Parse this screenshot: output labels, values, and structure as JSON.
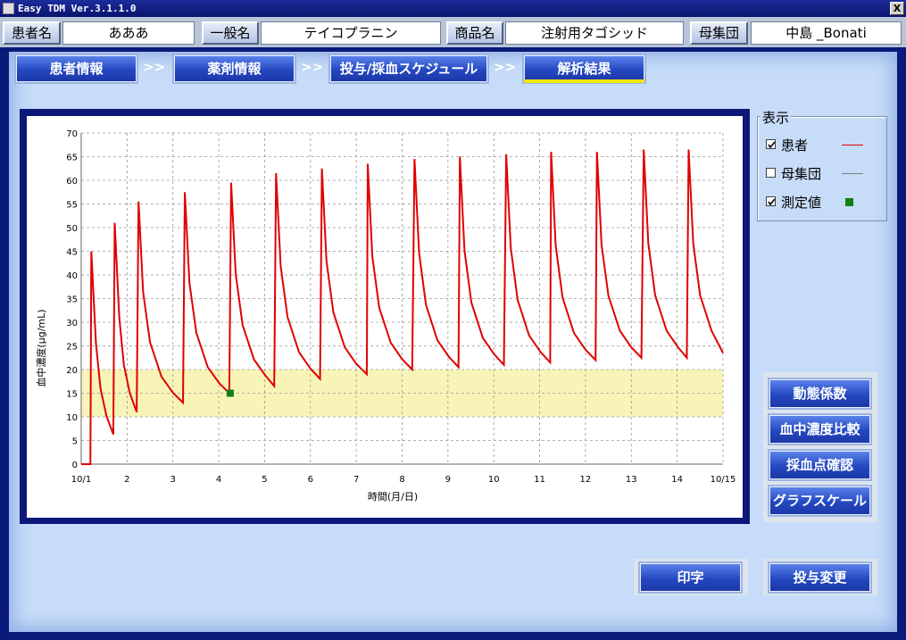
{
  "window": {
    "title": "Easy TDM Ver.3.1.1.0",
    "close_label": "X"
  },
  "header": {
    "fields": [
      {
        "label": "患者名",
        "value": "あああ"
      },
      {
        "label": "一般名",
        "value": "テイコプラニン"
      },
      {
        "label": "商品名",
        "value": "注射用タゴシッド"
      },
      {
        "label": "母集団",
        "value": "中島 _Bonati"
      }
    ]
  },
  "tabs": {
    "items": [
      "患者情報",
      "薬剤情報",
      "投与/採血スケジュール",
      "解析結果"
    ],
    "separator": ">>",
    "active": 3
  },
  "display_panel": {
    "title": "表示"
  },
  "buttons": {
    "side": [
      "動態係数",
      "血中濃度比較",
      "採血点確認",
      "グラフスケール"
    ],
    "bottom": [
      "印字",
      "投与変更"
    ]
  },
  "chart_data": {
    "type": "line",
    "x_label": "時間(月/日)",
    "y_label": "血中濃度(μg/mL)",
    "xlim": [
      1,
      15
    ],
    "xticks": [
      {
        "value": 1,
        "label": "10/1"
      },
      2,
      3,
      4,
      5,
      6,
      7,
      8,
      9,
      10,
      11,
      12,
      13,
      14,
      {
        "value": 15,
        "label": "10/15"
      }
    ],
    "ylim": [
      0,
      70
    ],
    "yticks": [
      0,
      5,
      10,
      15,
      20,
      25,
      30,
      35,
      40,
      45,
      50,
      55,
      60,
      65,
      70
    ],
    "grid": true,
    "band": [
      10,
      20
    ],
    "band_color": "#f8f4b8",
    "series": [
      {
        "name": "患者",
        "color": "#e00000",
        "visible": true,
        "x": [
          1.0,
          1.2,
          1.22,
          1.32,
          1.42,
          1.55,
          1.7,
          1.73,
          1.83,
          1.93,
          2.06,
          2.21,
          2.25,
          2.35,
          2.5,
          2.75,
          3.0,
          3.22,
          3.26,
          3.36,
          3.51,
          3.76,
          4.01,
          4.23,
          4.27,
          4.37,
          4.52,
          4.77,
          5.02,
          5.21,
          5.25,
          5.35,
          5.5,
          5.75,
          6.0,
          6.21,
          6.25,
          6.35,
          6.5,
          6.75,
          7.0,
          7.23,
          7.25,
          7.35,
          7.5,
          7.75,
          8.0,
          8.22,
          8.27,
          8.37,
          8.52,
          8.77,
          9.02,
          9.23,
          9.26,
          9.36,
          9.51,
          9.76,
          10.01,
          10.22,
          10.27,
          10.37,
          10.52,
          10.77,
          11.02,
          11.23,
          11.25,
          11.35,
          11.5,
          11.75,
          12.0,
          12.22,
          12.25,
          12.35,
          12.5,
          12.75,
          13.0,
          13.22,
          13.27,
          13.37,
          13.52,
          13.77,
          14.02,
          14.21,
          14.25,
          14.35,
          14.5,
          14.75,
          15.0
        ],
        "values": [
          0,
          0,
          45,
          25.7,
          16,
          10.2,
          6.3,
          51,
          31,
          21,
          15,
          11,
          55.5,
          36.4,
          25.8,
          18.5,
          15.1,
          13,
          57.5,
          38.4,
          27.8,
          20.5,
          17.1,
          15,
          59.5,
          40.2,
          29.4,
          22.1,
          18.7,
          16.5,
          61.5,
          41.9,
          31.1,
          23.7,
          20.2,
          18,
          62.5,
          42.9,
          32.1,
          24.7,
          21.2,
          19,
          63.5,
          43.9,
          33.1,
          25.7,
          22.2,
          20,
          64.5,
          44.7,
          33.7,
          26.2,
          22.7,
          20.5,
          65,
          45.2,
          34.2,
          26.7,
          23.2,
          21,
          65.5,
          45.7,
          34.7,
          27.2,
          23.7,
          21.5,
          66,
          46.2,
          35.2,
          27.7,
          24.2,
          22,
          66,
          46.4,
          35.6,
          28.2,
          24.7,
          22.5,
          66.5,
          46.7,
          35.7,
          28.2,
          24.7,
          22.5,
          66.5,
          46.7,
          35.7,
          28.2,
          23.5
        ]
      },
      {
        "name": "母集団",
        "color": "#808080",
        "visible": false,
        "x": [],
        "values": []
      },
      {
        "name": "測定値",
        "color": "#108010",
        "visible": true,
        "marker": "square",
        "x": [
          4.25
        ],
        "values": [
          15
        ]
      }
    ]
  }
}
